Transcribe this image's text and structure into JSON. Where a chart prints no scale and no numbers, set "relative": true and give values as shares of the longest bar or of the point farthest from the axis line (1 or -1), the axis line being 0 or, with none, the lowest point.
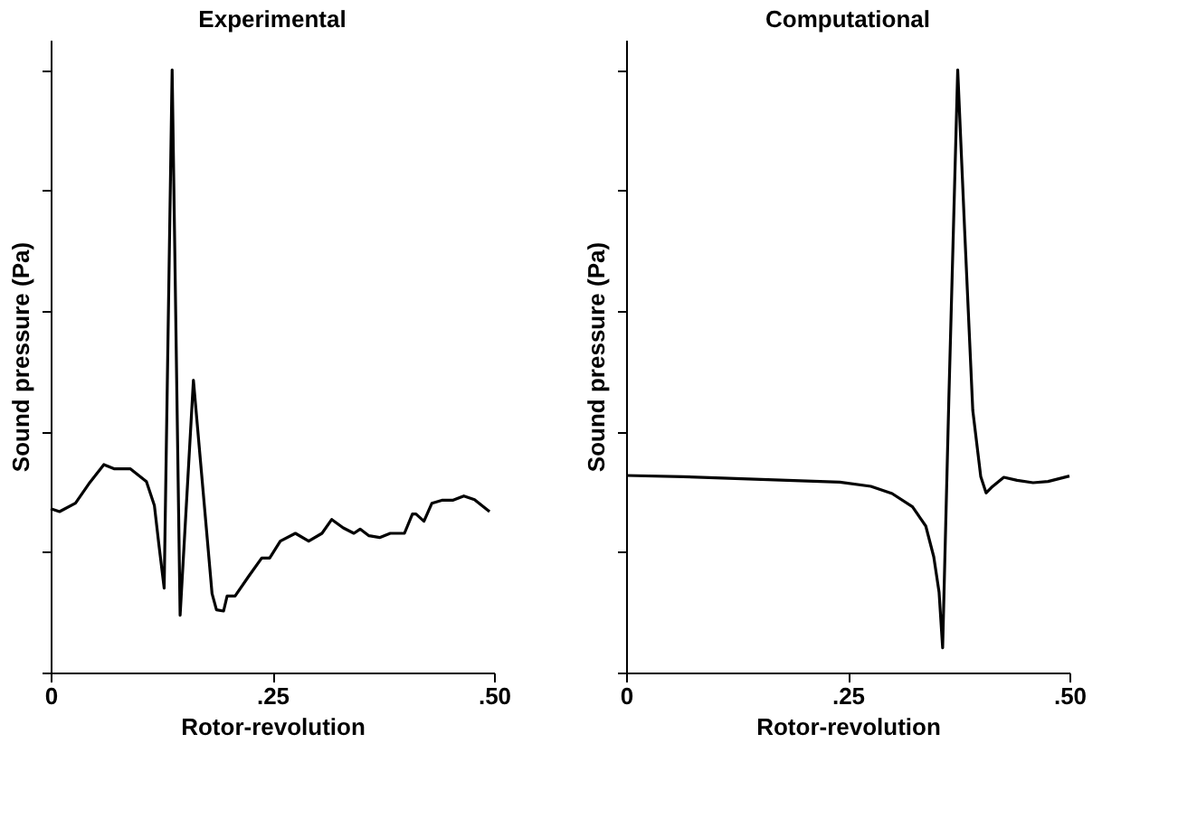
{
  "chart_data": [
    {
      "type": "line",
      "title": "Experimental",
      "xlabel": "Rotor-revolution",
      "ylabel": "Sound pressure (Pa)",
      "relative": true,
      "tick_labels": "x",
      "grid": false,
      "line_style": "solid",
      "marker": "none",
      "xlim": [
        0,
        0.5
      ],
      "xticks": [
        {
          "value": 0,
          "label": "0"
        },
        {
          "value": 0.25,
          "label": ".25"
        },
        {
          "value": 0.5,
          "label": ".50"
        }
      ],
      "x": [
        0,
        0.01,
        0.028,
        0.043,
        0.06,
        0.072,
        0.09,
        0.108,
        0.117,
        0.122,
        0.128,
        0.137,
        0.146,
        0.161,
        0.182,
        0.187,
        0.195,
        0.199,
        0.208,
        0.223,
        0.238,
        0.247,
        0.259,
        0.276,
        0.291,
        0.306,
        0.317,
        0.33,
        0.342,
        0.349,
        0.359,
        0.371,
        0.383,
        0.399,
        0.408,
        0.412,
        0.421,
        0.43,
        0.442,
        0.454,
        0.466,
        0.478,
        0.495
      ],
      "series": [
        {
          "color": "#000000",
          "values": [
            0.272,
            0.267,
            0.281,
            0.313,
            0.345,
            0.338,
            0.338,
            0.317,
            0.277,
            0.213,
            0.14,
            1.0,
            0.095,
            0.485,
            0.131,
            0.104,
            0.102,
            0.127,
            0.127,
            0.159,
            0.19,
            0.19,
            0.218,
            0.231,
            0.218,
            0.231,
            0.254,
            0.24,
            0.231,
            0.238,
            0.227,
            0.224,
            0.231,
            0.231,
            0.263,
            0.263,
            0.251,
            0.281,
            0.286,
            0.286,
            0.293,
            0.287,
            0.267
          ]
        }
      ]
    },
    {
      "type": "line",
      "title": "Computational",
      "xlabel": "Rotor-revolution",
      "ylabel": "Sound pressure (Pa)",
      "relative": true,
      "tick_labels": "x",
      "grid": false,
      "line_style": "solid",
      "marker": "none",
      "xlim": [
        0,
        0.5
      ],
      "xticks": [
        {
          "value": 0,
          "label": "0"
        },
        {
          "value": 0.25,
          "label": ".25"
        },
        {
          "value": 0.5,
          "label": ".50"
        }
      ],
      "x": [
        0,
        0.064,
        0.123,
        0.182,
        0.241,
        0.276,
        0.3,
        0.323,
        0.338,
        0.347,
        0.353,
        0.357,
        0.364,
        0.374,
        0.382,
        0.391,
        0.4,
        0.406,
        0.412,
        0.426,
        0.441,
        0.459,
        0.476,
        0.5
      ],
      "series": [
        {
          "color": "#000000",
          "values": [
            0.327,
            0.325,
            0.322,
            0.319,
            0.316,
            0.309,
            0.297,
            0.275,
            0.243,
            0.192,
            0.133,
            0.041,
            0.453,
            1.0,
            0.728,
            0.435,
            0.325,
            0.298,
            0.307,
            0.324,
            0.319,
            0.315,
            0.317,
            0.326
          ]
        }
      ]
    }
  ]
}
